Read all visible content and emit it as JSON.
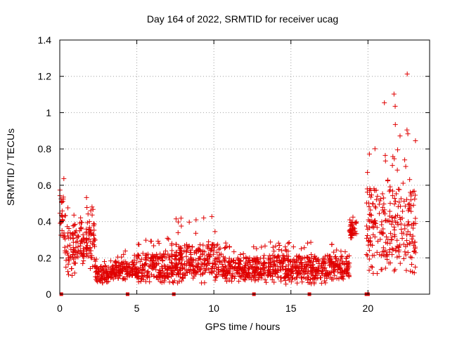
{
  "chart_data": {
    "type": "scatter",
    "title": "Day 164 of 2022, SRMTID for receiver ucag",
    "xlabel": "GPS time / hours",
    "ylabel": "SRMTID / TECUs",
    "xlim": [
      0,
      24
    ],
    "ylim": [
      0,
      1.4
    ],
    "xticks": [
      0,
      5,
      10,
      15,
      20
    ],
    "xtick_labels": [
      "0",
      "5",
      "10",
      "15",
      "20"
    ],
    "yticks": [
      0,
      0.2,
      0.4,
      0.6,
      0.8,
      1.0,
      1.2,
      1.4
    ],
    "ytick_labels": [
      "0",
      "0.2",
      "0.4",
      "0.6",
      "0.8",
      "1",
      "1.2",
      "1.4"
    ],
    "grid": true,
    "marker": "+",
    "color": "#e00000",
    "series": [
      {
        "name": "SRMTID",
        "segments": [
          {
            "x_start": 0.0,
            "x_end": 0.3,
            "y_min": 0.25,
            "y_max": 0.67,
            "median": 0.45
          },
          {
            "x_start": 0.3,
            "x_end": 1.0,
            "y_min": 0.1,
            "y_max": 0.5,
            "median": 0.27
          },
          {
            "x_start": 1.0,
            "x_end": 2.3,
            "y_min": 0.14,
            "y_max": 0.56,
            "median": 0.3
          },
          {
            "x_start": 2.3,
            "x_end": 3.5,
            "y_min": 0.06,
            "y_max": 0.2,
            "median": 0.12
          },
          {
            "x_start": 3.5,
            "x_end": 5.0,
            "y_min": 0.08,
            "y_max": 0.25,
            "median": 0.14
          },
          {
            "x_start": 5.0,
            "x_end": 7.5,
            "y_min": 0.06,
            "y_max": 0.31,
            "median": 0.16
          },
          {
            "x_start": 7.5,
            "x_end": 10.5,
            "y_min": 0.06,
            "y_max": 0.43,
            "median": 0.19
          },
          {
            "x_start": 10.5,
            "x_end": 13.0,
            "y_min": 0.07,
            "y_max": 0.3,
            "median": 0.15
          },
          {
            "x_start": 13.0,
            "x_end": 17.5,
            "y_min": 0.05,
            "y_max": 0.3,
            "median": 0.15
          },
          {
            "x_start": 17.5,
            "x_end": 18.8,
            "y_min": 0.08,
            "y_max": 0.28,
            "median": 0.16
          },
          {
            "x_start": 18.8,
            "x_end": 19.3,
            "y_min": 0.3,
            "y_max": 0.45,
            "median": 0.36
          },
          {
            "x_start": 19.9,
            "x_end": 21.5,
            "y_min": 0.1,
            "y_max": 1.1,
            "median": 0.4
          },
          {
            "x_start": 21.5,
            "x_end": 23.1,
            "y_min": 0.1,
            "y_max": 1.25,
            "median": 0.4
          }
        ]
      }
    ],
    "zero_markers_x": [
      0.1,
      4.4,
      7.4,
      12.6,
      16.2,
      19.9,
      20.0
    ]
  }
}
